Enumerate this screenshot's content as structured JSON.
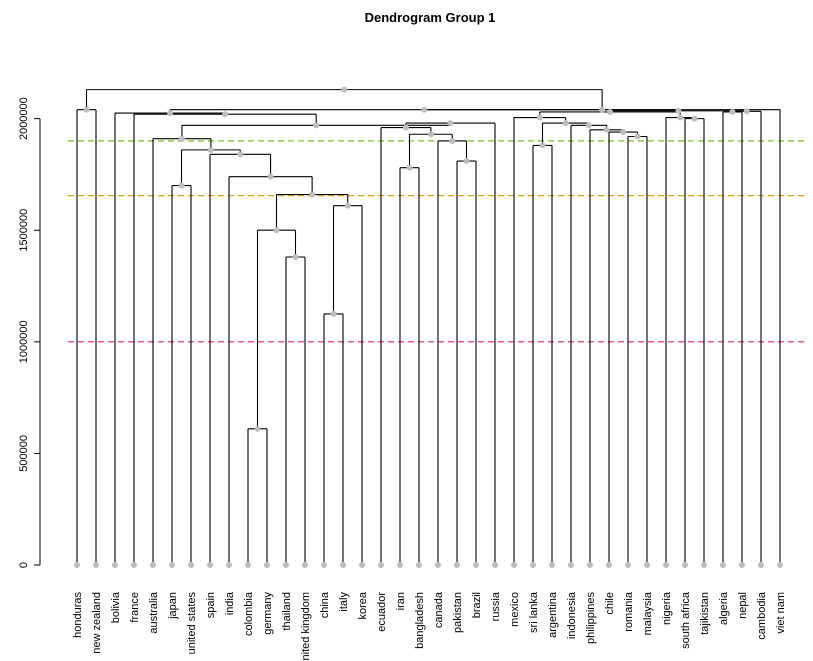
{
  "chart_data": {
    "type": "dendrogram",
    "title": "Dendrogram Group 1",
    "xlabel": "",
    "ylabel": "",
    "ylim": [
      0,
      2200000
    ],
    "yticks": [
      0,
      500000,
      1000000,
      1500000,
      2000000
    ],
    "ytick_labels": [
      "0",
      "500000",
      "1000000",
      "1500000",
      "2000000"
    ],
    "threshold_lines": [
      {
        "value": 1900000,
        "color": "#66bb00"
      },
      {
        "value": 1655000,
        "color": "#e6a000"
      },
      {
        "value": 1000000,
        "color": "#e0207a"
      }
    ],
    "leaves": [
      "honduras",
      "new zealand",
      "bolivia",
      "france",
      "australia",
      "japan",
      "united states",
      "spain",
      "india",
      "colombia",
      "germany",
      "thailand",
      "united kingdom",
      "china",
      "italy",
      "korea",
      "ecuador",
      "iran",
      "bangladesh",
      "canada",
      "pakistan",
      "brazil",
      "russia",
      "mexico",
      "sri lanka",
      "argentina",
      "indonesia",
      "philippines",
      "chile",
      "romania",
      "malaysia",
      "nigeria",
      "south africa",
      "tajikistan",
      "algeria",
      "nepal",
      "cambodia",
      "viet nam"
    ],
    "merges": [
      {
        "a": "colombia",
        "b": "germany",
        "height": 610000
      },
      {
        "a": "china",
        "b": "italy",
        "height": 1125000
      },
      {
        "a": "thailand",
        "b": "united kingdom",
        "height": 1380000
      },
      {
        "a": 0,
        "b": 2,
        "height": 1500000
      },
      {
        "a": "korea",
        "b": 1,
        "height": 1610000
      },
      {
        "a": 3,
        "b": 4,
        "height": 1660000
      },
      {
        "a": "japan",
        "b": "united states",
        "height": 1700000
      },
      {
        "a": "india",
        "b": 5,
        "height": 1740000
      },
      {
        "a": "iran",
        "b": "bangladesh",
        "height": 1780000
      },
      {
        "a": "pakistan",
        "b": "brazil",
        "height": 1810000
      },
      {
        "a": "spain",
        "b": 7,
        "height": 1840000
      },
      {
        "a": 6,
        "b": 10,
        "height": 1860000
      },
      {
        "a": "sri lanka",
        "b": "argentina",
        "height": 1880000
      },
      {
        "a": "canada",
        "b": 9,
        "height": 1900000
      },
      {
        "a": "australia",
        "b": 11,
        "height": 1910000
      },
      {
        "a": "romania",
        "b": "malaysia",
        "height": 1920000
      },
      {
        "a": "chile",
        "b": 15,
        "height": 1940000
      },
      {
        "a": "philippines",
        "b": 16,
        "height": 1950000
      },
      {
        "a": 8,
        "b": 13,
        "height": 1930000
      },
      {
        "a": "indonesia",
        "b": 17,
        "height": 1970000
      },
      {
        "a": "ecuador",
        "b": 18,
        "height": 1960000
      },
      {
        "a": 12,
        "b": 19,
        "height": 1980000
      },
      {
        "a": "south africa",
        "b": "tajikistan",
        "height": 2000000
      },
      {
        "a": 20,
        "b": "russia",
        "height": 1980000
      },
      {
        "a": "nigeria",
        "b": 22,
        "height": 2005000
      },
      {
        "a": 14,
        "b": 23,
        "height": 1970000
      },
      {
        "a": "mexico",
        "b": 21,
        "height": 2005000
      },
      {
        "a": "france",
        "b": 25,
        "height": 2020000
      },
      {
        "a": "bolivia",
        "b": 27,
        "height": 2025000
      },
      {
        "a": "algeria",
        "b": "nepal",
        "height": 2030000
      },
      {
        "a": 26,
        "b": 24,
        "height": 2030000
      },
      {
        "a": 29,
        "b": "cambodia",
        "height": 2033000
      },
      {
        "a": 30,
        "b": 31,
        "height": 2035000
      },
      {
        "a": "honduras",
        "b": "new zealand",
        "height": 2040000
      },
      {
        "a": 28,
        "b": 32,
        "height": 2040000
      },
      {
        "a": "viet nam",
        "b": 34,
        "height": 2040000
      },
      {
        "a": 33,
        "b": 35,
        "height": 2130000
      }
    ]
  }
}
